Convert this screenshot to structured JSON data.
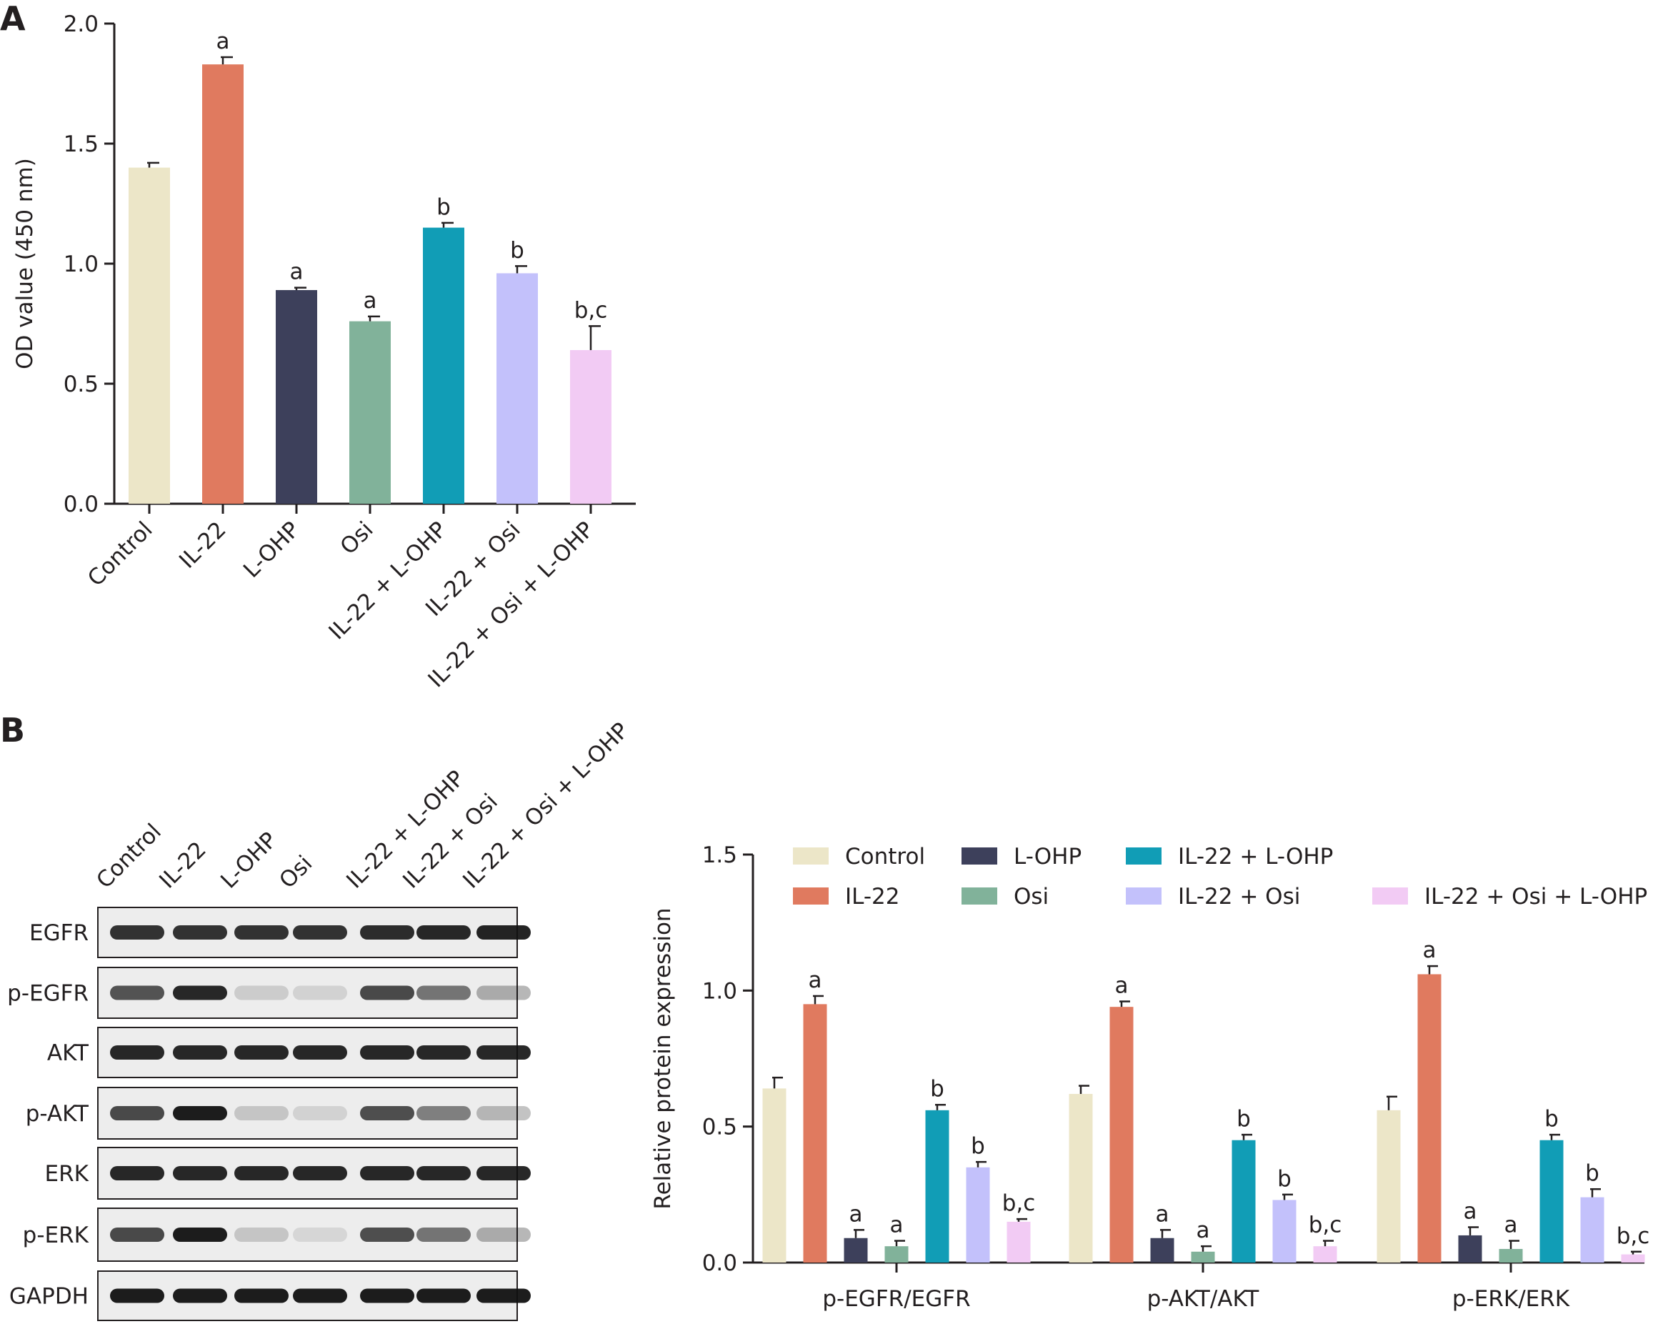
{
  "panels": {
    "a": "A",
    "b": "B"
  },
  "colors": {
    "Control": "#ece6c8",
    "IL-22": "#e07a5f",
    "L-OHP": "#3d405b",
    "Osi": "#81b29a",
    "IL-22 + L-OHP": "#119db6",
    "IL-22 + Osi": "#c3c1fb",
    "IL-22 + Osi + L-OHP": "#f2cbf4"
  },
  "chart_data": [
    {
      "type": "bar",
      "panel": "A",
      "ylabel": "OD value (450 nm)",
      "xlabel": "",
      "ylim": [
        0,
        2.0
      ],
      "yticks": [
        "0.0",
        "0.5",
        "1.0",
        "1.5",
        "2.0"
      ],
      "categories": [
        "Control",
        "IL-22",
        "L-OHP",
        "Osi",
        "IL-22 + L-OHP",
        "IL-22 + Osi",
        "IL-22 + Osi + L-OHP"
      ],
      "values": [
        1.4,
        1.83,
        0.89,
        0.76,
        1.15,
        0.96,
        0.64
      ],
      "errors": [
        0.02,
        0.03,
        0.01,
        0.02,
        0.02,
        0.03,
        0.1
      ],
      "annotations": [
        "",
        "a",
        "a",
        "a",
        "b",
        "b",
        "b,c"
      ]
    },
    {
      "type": "bar",
      "panel": "B",
      "ylabel": "Relative protein expression",
      "xlabel": "",
      "ylim": [
        0,
        1.5
      ],
      "yticks": [
        "0.0",
        "0.5",
        "1.0",
        "1.5"
      ],
      "legend_position": "top",
      "legend": [
        "Control",
        "IL-22",
        "L-OHP",
        "Osi",
        "IL-22 + L-OHP",
        "IL-22 + Osi",
        "IL-22 + Osi + L-OHP"
      ],
      "groups": [
        "p-EGFR/EGFR",
        "p-AKT/AKT",
        "p-ERK/ERK"
      ],
      "series": [
        {
          "name": "Control",
          "values": [
            0.64,
            0.62,
            0.56
          ],
          "errors": [
            0.04,
            0.03,
            0.05
          ],
          "annotations": [
            "",
            "",
            ""
          ]
        },
        {
          "name": "IL-22",
          "values": [
            0.95,
            0.94,
            1.06
          ],
          "errors": [
            0.03,
            0.02,
            0.03
          ],
          "annotations": [
            "a",
            "a",
            "a"
          ]
        },
        {
          "name": "L-OHP",
          "values": [
            0.09,
            0.09,
            0.1
          ],
          "errors": [
            0.03,
            0.03,
            0.03
          ],
          "annotations": [
            "a",
            "a",
            "a"
          ]
        },
        {
          "name": "Osi",
          "values": [
            0.06,
            0.04,
            0.05
          ],
          "errors": [
            0.02,
            0.02,
            0.03
          ],
          "annotations": [
            "a",
            "a",
            "a"
          ]
        },
        {
          "name": "IL-22 + L-OHP",
          "values": [
            0.56,
            0.45,
            0.45
          ],
          "errors": [
            0.02,
            0.02,
            0.02
          ],
          "annotations": [
            "b",
            "b",
            "b"
          ]
        },
        {
          "name": "IL-22 + Osi",
          "values": [
            0.35,
            0.23,
            0.24
          ],
          "errors": [
            0.02,
            0.02,
            0.03
          ],
          "annotations": [
            "b",
            "b",
            "b"
          ]
        },
        {
          "name": "IL-22 + Osi + L-OHP",
          "values": [
            0.15,
            0.06,
            0.03
          ],
          "errors": [
            0.01,
            0.02,
            0.01
          ],
          "annotations": [
            "b,c",
            "b,c",
            "b,c"
          ]
        }
      ]
    }
  ],
  "western_blot": {
    "lanes": [
      "Control",
      "IL-22",
      "L-OHP",
      "Osi",
      "IL-22 + L-OHP",
      "IL-22 + Osi",
      "IL-22 + Osi + L-OHP"
    ],
    "rows": [
      {
        "label": "EGFR",
        "intensity": [
          0.85,
          0.85,
          0.85,
          0.85,
          0.88,
          0.9,
          0.92
        ]
      },
      {
        "label": "p-EGFR",
        "intensity": [
          0.7,
          0.9,
          0.15,
          0.12,
          0.75,
          0.55,
          0.3
        ]
      },
      {
        "label": "AKT",
        "intensity": [
          0.9,
          0.9,
          0.9,
          0.9,
          0.9,
          0.9,
          0.9
        ]
      },
      {
        "label": "p-AKT",
        "intensity": [
          0.75,
          0.95,
          0.18,
          0.12,
          0.72,
          0.5,
          0.25
        ]
      },
      {
        "label": "ERK",
        "intensity": [
          0.9,
          0.9,
          0.9,
          0.9,
          0.9,
          0.9,
          0.9
        ]
      },
      {
        "label": "p-ERK",
        "intensity": [
          0.75,
          0.95,
          0.18,
          0.1,
          0.72,
          0.55,
          0.3
        ]
      },
      {
        "label": "GAPDH",
        "intensity": [
          0.95,
          0.95,
          0.95,
          0.95,
          0.95,
          0.95,
          0.95
        ]
      }
    ]
  }
}
